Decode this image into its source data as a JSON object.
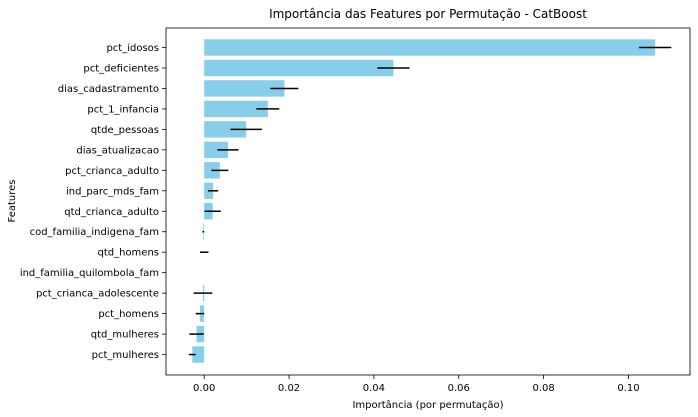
{
  "chart_data": {
    "type": "bar",
    "orientation": "horizontal",
    "title": "Importância das Features por Permutação - CatBoost",
    "xlabel": "Importância (por permutação)",
    "ylabel": "Features",
    "xlim": [
      -0.009,
      0.1145
    ],
    "xticks": [
      0.0,
      0.02,
      0.04,
      0.06,
      0.08,
      0.1
    ],
    "xtick_labels": [
      "0.00",
      "0.02",
      "0.04",
      "0.06",
      "0.08",
      "0.10"
    ],
    "bar_color": "#87ceeb",
    "error_color": "#000000",
    "grid": false,
    "categories": [
      "pct_idosos",
      "pct_deficientes",
      "dias_cadastramento",
      "pct_1_infancia",
      "qtde_pessoas",
      "dias_atualizacao",
      "pct_crianca_adulto",
      "ind_parc_mds_fam",
      "qtd_crianca_adulto",
      "cod_familia_indigena_fam",
      "qtd_homens",
      "ind_familia_quilombola_fam",
      "pct_crianca_adolescente",
      "pct_homens",
      "qtd_mulheres",
      "pct_mulheres"
    ],
    "values": [
      0.1063,
      0.0446,
      0.0189,
      0.015,
      0.0099,
      0.0056,
      0.0037,
      0.0021,
      0.002,
      -0.0002,
      0.0,
      0.0,
      -0.0003,
      -0.001,
      -0.0018,
      -0.0028
    ],
    "errors": [
      0.0038,
      0.0038,
      0.0033,
      0.0027,
      0.0037,
      0.0025,
      0.002,
      0.0012,
      0.0019,
      0.0002,
      0.001,
      0.0,
      0.0022,
      0.001,
      0.0017,
      0.0008
    ]
  }
}
